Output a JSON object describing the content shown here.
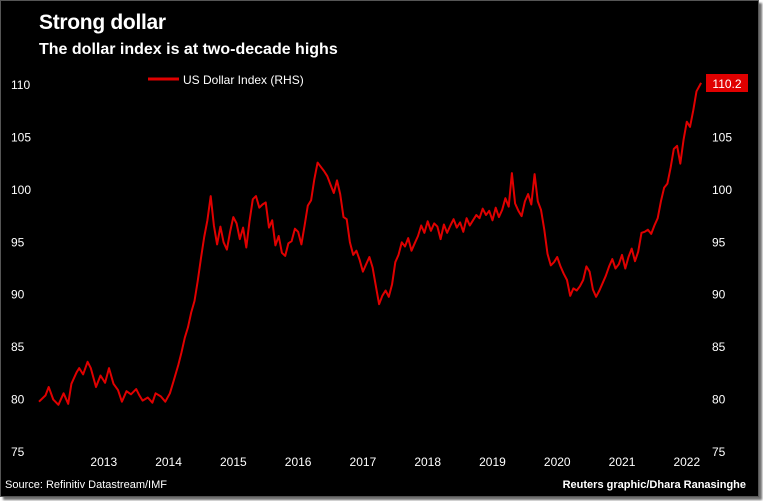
{
  "header": {
    "title": "Strong dollar",
    "subtitle": "The dollar index is at two-decade highs"
  },
  "footer": {
    "source": "Source: Refinitiv Datastream/IMF",
    "credit": "Reuters graphic/Dhara Ranasinghe"
  },
  "colors": {
    "background": "#000000",
    "text": "#ffffff",
    "line": "#e00000",
    "callout": "#e00000"
  },
  "chart_data": {
    "type": "line",
    "title": "Strong dollar",
    "subtitle": "The dollar index is at two-decade highs",
    "xlabel": "",
    "ylabel": "",
    "x_ticks": [
      "2013",
      "2014",
      "2015",
      "2016",
      "2017",
      "2018",
      "2019",
      "2020",
      "2021",
      "2022"
    ],
    "y_ticks_left": [
      "75",
      "80",
      "85",
      "90",
      "95",
      "100",
      "105",
      "110"
    ],
    "y_ticks_right": [
      "75",
      "80",
      "85",
      "90",
      "95",
      "100",
      "105"
    ],
    "ylim": [
      75,
      110
    ],
    "xlim": [
      2012.5,
      2022.75
    ],
    "grid": false,
    "legend": {
      "position": "top-left",
      "entries": [
        "US Dollar Index (RHS)"
      ]
    },
    "callout": {
      "label": "110.2",
      "value": 110.2
    },
    "series": [
      {
        "name": "US Dollar Index (RHS)",
        "axis": "right",
        "x": [
          2012.5,
          2012.6,
          2012.65,
          2012.72,
          2012.8,
          2012.88,
          2012.95,
          2013.0,
          2013.08,
          2013.12,
          2013.18,
          2013.25,
          2013.3,
          2013.38,
          2013.45,
          2013.52,
          2013.58,
          2013.65,
          2013.72,
          2013.78,
          2013.85,
          2013.92,
          2014.0,
          2014.05,
          2014.1,
          2014.18,
          2014.25,
          2014.3,
          2014.38,
          2014.45,
          2014.52,
          2014.58,
          2014.65,
          2014.7,
          2014.75,
          2014.8,
          2014.85,
          2014.9,
          2014.95,
          2015.0,
          2015.05,
          2015.1,
          2015.15,
          2015.2,
          2015.25,
          2015.3,
          2015.35,
          2015.4,
          2015.45,
          2015.5,
          2015.55,
          2015.6,
          2015.65,
          2015.7,
          2015.75,
          2015.8,
          2015.85,
          2015.9,
          2015.95,
          2016.0,
          2016.05,
          2016.1,
          2016.15,
          2016.2,
          2016.25,
          2016.3,
          2016.35,
          2016.4,
          2016.45,
          2016.5,
          2016.55,
          2016.6,
          2016.65,
          2016.7,
          2016.75,
          2016.8,
          2016.85,
          2016.9,
          2016.95,
          2017.0,
          2017.05,
          2017.1,
          2017.15,
          2017.2,
          2017.25,
          2017.3,
          2017.35,
          2017.4,
          2017.45,
          2017.5,
          2017.55,
          2017.6,
          2017.65,
          2017.7,
          2017.75,
          2017.8,
          2017.85,
          2017.9,
          2017.95,
          2018.0,
          2018.05,
          2018.1,
          2018.15,
          2018.2,
          2018.25,
          2018.3,
          2018.35,
          2018.4,
          2018.45,
          2018.5,
          2018.55,
          2018.6,
          2018.65,
          2018.7,
          2018.75,
          2018.8,
          2018.85,
          2018.9,
          2018.95,
          2019.0,
          2019.05,
          2019.1,
          2019.15,
          2019.2,
          2019.25,
          2019.3,
          2019.35,
          2019.4,
          2019.45,
          2019.5,
          2019.55,
          2019.6,
          2019.65,
          2019.7,
          2019.75,
          2019.8,
          2019.85,
          2019.9,
          2019.95,
          2020.0,
          2020.05,
          2020.1,
          2020.15,
          2020.2,
          2020.25,
          2020.3,
          2020.35,
          2020.4,
          2020.45,
          2020.5,
          2020.55,
          2020.6,
          2020.65,
          2020.7,
          2020.75,
          2020.8,
          2020.85,
          2020.9,
          2020.95,
          2021.0,
          2021.05,
          2021.1,
          2021.15,
          2021.2,
          2021.25,
          2021.3,
          2021.35,
          2021.4,
          2021.45,
          2021.5,
          2021.55,
          2021.6,
          2021.65,
          2021.7,
          2021.75,
          2021.8,
          2021.85,
          2021.9,
          2021.95,
          2022.0,
          2022.05,
          2022.1,
          2022.15,
          2022.2,
          2022.25,
          2022.3,
          2022.35,
          2022.4,
          2022.45,
          2022.5,
          2022.55,
          2022.6,
          2022.65,
          2022.72
        ],
        "values": [
          79.8,
          80.4,
          81.2,
          80.0,
          79.5,
          80.6,
          79.6,
          81.5,
          82.6,
          83.0,
          82.4,
          83.6,
          83.0,
          81.2,
          82.3,
          81.6,
          83.0,
          81.5,
          80.9,
          79.8,
          80.8,
          80.5,
          81.0,
          80.4,
          79.9,
          80.2,
          79.7,
          80.6,
          80.3,
          79.8,
          80.6,
          81.8,
          83.3,
          84.5,
          85.9,
          86.9,
          88.3,
          89.4,
          91.3,
          93.5,
          95.5,
          97.1,
          99.4,
          96.6,
          94.8,
          96.5,
          95.0,
          94.3,
          96.0,
          97.4,
          96.8,
          95.3,
          96.4,
          94.5,
          97.0,
          99.1,
          99.4,
          98.3,
          98.6,
          98.8,
          96.4,
          97.1,
          94.7,
          95.6,
          94.0,
          93.7,
          94.9,
          95.1,
          96.3,
          96.0,
          94.8,
          96.6,
          98.5,
          99.0,
          101.0,
          102.6,
          102.2,
          101.8,
          101.3,
          100.5,
          99.7,
          100.9,
          99.6,
          97.4,
          97.2,
          95.0,
          93.8,
          94.2,
          93.3,
          92.2,
          92.9,
          93.6,
          92.6,
          90.8,
          89.1,
          89.9,
          90.4,
          89.8,
          91.0,
          93.1,
          93.8,
          95.0,
          94.6,
          95.4,
          94.2,
          94.9,
          95.6,
          96.6,
          95.9,
          97.0,
          96.1,
          96.8,
          96.5,
          95.3,
          96.7,
          95.9,
          96.6,
          97.2,
          96.4,
          96.9,
          96.0,
          97.3,
          96.6,
          97.1,
          97.6,
          97.3,
          98.2,
          97.6,
          98.0,
          97.1,
          98.3,
          97.4,
          98.1,
          99.2,
          98.4,
          101.6,
          98.7,
          98.0,
          97.5,
          98.9,
          99.6,
          98.6,
          101.5,
          98.9,
          98.1,
          96.2,
          93.9,
          92.8,
          93.1,
          93.6,
          92.7,
          92.0,
          91.4,
          89.9,
          90.6,
          90.4,
          90.8,
          91.4,
          92.7,
          92.2,
          90.5,
          89.8,
          90.4,
          91.1,
          91.8,
          92.7,
          93.4,
          92.5,
          92.9,
          93.8,
          92.5,
          93.6,
          94.4,
          93.2,
          94.1,
          95.9,
          96.0,
          96.2,
          95.8,
          96.6,
          97.3,
          98.9,
          100.2,
          100.6,
          102.1,
          103.9,
          104.2,
          102.5,
          104.8,
          106.5,
          106.0,
          107.6,
          109.4,
          110.2
        ]
      }
    ]
  }
}
